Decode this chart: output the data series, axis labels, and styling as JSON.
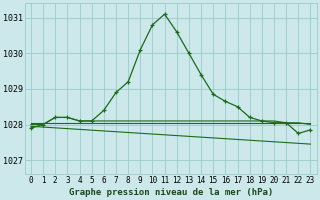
{
  "title": "Graphe pression niveau de la mer (hPa)",
  "bg_color": "#cce8ea",
  "grid_color": "#99cccc",
  "line_color": "#1a6b1a",
  "dark_line_color": "#1a5c1a",
  "xlim": [
    -0.5,
    23.5
  ],
  "ylim": [
    1026.6,
    1031.4
  ],
  "yticks": [
    1027,
    1028,
    1029,
    1030,
    1031
  ],
  "xtick_labels": [
    "0",
    "1",
    "2",
    "3",
    "4",
    "5",
    "6",
    "7",
    "8",
    "9",
    "10",
    "11",
    "12",
    "13",
    "14",
    "15",
    "16",
    "17",
    "18",
    "19",
    "20",
    "21",
    "22",
    "23"
  ],
  "series_main": {
    "x": [
      0,
      1,
      2,
      3,
      4,
      5,
      6,
      7,
      8,
      9,
      10,
      11,
      12,
      13,
      14,
      15,
      16,
      17,
      18,
      19,
      20,
      21,
      22,
      23
    ],
    "y": [
      1027.9,
      1028.0,
      1028.2,
      1028.2,
      1028.1,
      1028.1,
      1028.4,
      1028.9,
      1029.2,
      1030.1,
      1030.8,
      1031.1,
      1030.6,
      1030.0,
      1029.4,
      1028.85,
      1028.65,
      1028.5,
      1028.2,
      1028.1,
      1028.05,
      1028.05,
      1027.75,
      1027.85
    ]
  },
  "series_flat1": {
    "x": [
      0,
      1,
      2,
      3,
      4,
      5,
      6,
      7,
      8,
      9,
      10,
      11,
      12,
      13,
      14,
      15,
      16,
      17,
      18,
      19,
      20,
      21,
      22,
      23
    ],
    "y": [
      1028.0,
      1028.0,
      1028.2,
      1028.2,
      1028.1,
      1028.1,
      1028.1,
      1028.1,
      1028.1,
      1028.1,
      1028.1,
      1028.1,
      1028.1,
      1028.1,
      1028.1,
      1028.1,
      1028.1,
      1028.1,
      1028.1,
      1028.1,
      1028.1,
      1028.05,
      1028.05,
      1028.0
    ]
  },
  "series_flat2": {
    "x": [
      0,
      23
    ],
    "y": [
      1028.05,
      1028.05
    ]
  },
  "series_diagonal": {
    "x": [
      0,
      23
    ],
    "y": [
      1027.95,
      1027.45
    ]
  },
  "xlabel_fontsize": 6.5,
  "xlabel_color": "#1a4a1a",
  "tick_fontsize": 5.5,
  "ytick_fontsize": 6.0
}
